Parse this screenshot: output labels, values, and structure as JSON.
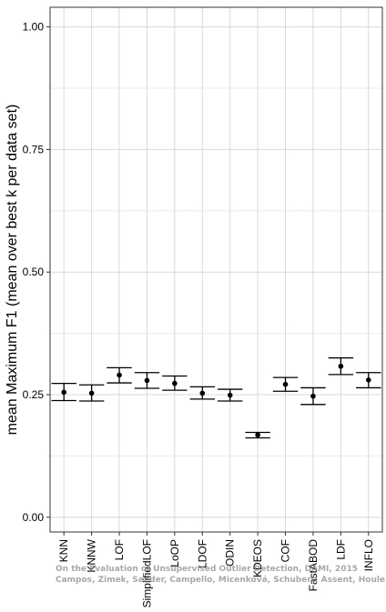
{
  "chart_data": {
    "type": "errorbar",
    "title": "",
    "xlabel": "",
    "ylabel": "mean Maximum F1 (mean over best k per data set)",
    "ylim": [
      -0.03,
      1.04
    ],
    "yticks": [
      "0.00",
      "0.25",
      "0.50",
      "0.75",
      "1.00"
    ],
    "ytick_values": [
      0.0,
      0.25,
      0.5,
      0.75,
      1.0
    ],
    "grid": true,
    "categories": [
      "KNN",
      "KNNW",
      "LOF",
      "SimplifiedLOF",
      "LoOP",
      "LDOF",
      "ODIN",
      "KDEOS",
      "COF",
      "FastABOD",
      "LDF",
      "INFLO"
    ],
    "series": [
      {
        "mean": [
          0.255,
          0.253,
          0.29,
          0.279,
          0.273,
          0.253,
          0.249,
          0.168,
          0.271,
          0.247,
          0.308,
          0.28
        ],
        "lower": [
          0.238,
          0.237,
          0.274,
          0.263,
          0.259,
          0.241,
          0.237,
          0.162,
          0.257,
          0.23,
          0.291,
          0.264
        ],
        "upper": [
          0.273,
          0.27,
          0.305,
          0.295,
          0.288,
          0.266,
          0.261,
          0.173,
          0.285,
          0.264,
          0.325,
          0.295
        ]
      }
    ],
    "watermark": [
      "On the Evaluation of Unsupervised Outlier Detection, DAMI, 2015",
      "Campos, Zimek, Sander, Campello, Micenková, Schubert, Assent, Houle"
    ]
  }
}
